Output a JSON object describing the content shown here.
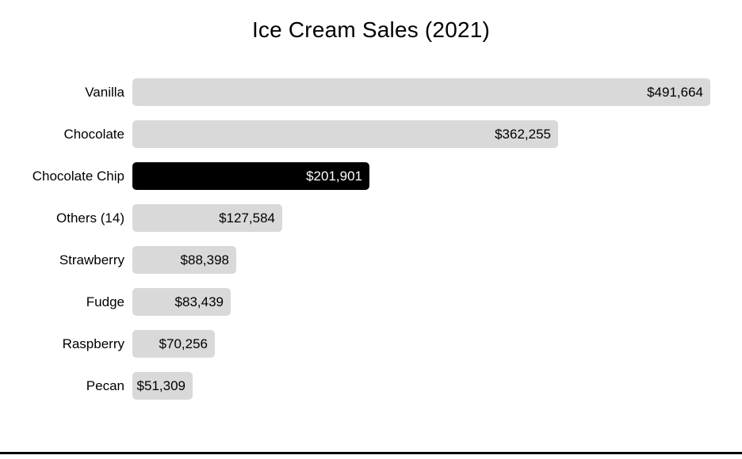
{
  "chart_data": {
    "type": "bar",
    "orientation": "horizontal",
    "title": "Ice Cream Sales (2021)",
    "categories": [
      "Vanilla",
      "Chocolate",
      "Chocolate Chip",
      "Others (14)",
      "Strawberry",
      "Fudge",
      "Raspberry",
      "Pecan"
    ],
    "values": [
      491664,
      362255,
      201901,
      127584,
      88398,
      83439,
      70256,
      51309
    ],
    "value_labels": [
      "$491,664",
      "$362,255",
      "$201,901",
      "$127,584",
      "$88,398",
      "$83,439",
      "$70,256",
      "$51,309"
    ],
    "highlighted_category": "Chocolate Chip",
    "xlim": [
      0,
      491664
    ],
    "grid": false,
    "legend": false,
    "colors": {
      "bar": "#d9d9d9",
      "highlight_bar": "#000000",
      "value_text": "#000000",
      "highlight_value_text": "#ffffff",
      "label_text": "#000000",
      "title_text": "#000000",
      "bottom_rule": "#000000"
    }
  }
}
